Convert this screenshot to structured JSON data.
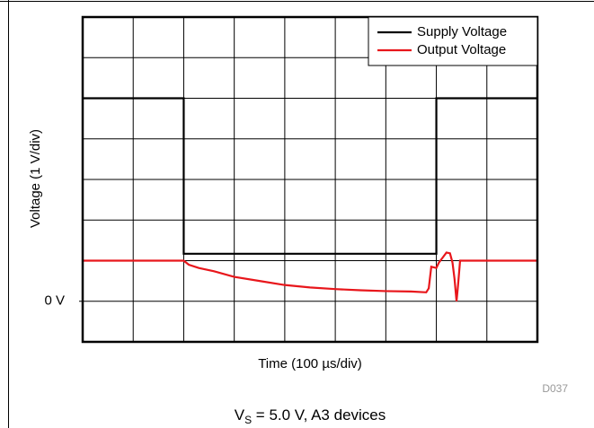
{
  "chart_data": {
    "type": "line",
    "x_label": "Time (100 µs/div)",
    "y_label": "Voltage (1 V/div)",
    "note": "D037",
    "caption": {
      "main": "V",
      "sub": "S",
      "rest": " = 5.0 V, A3 devices"
    },
    "xlim": [
      0,
      9
    ],
    "ylim": [
      -1,
      7
    ],
    "xgrid": [
      1,
      2,
      3,
      4,
      5,
      6,
      7,
      8
    ],
    "ygrid": [
      0,
      1,
      2,
      3,
      4,
      5,
      6
    ],
    "yticks": [
      {
        "value": 0,
        "label": "0 V"
      }
    ],
    "grid": true,
    "legend": "upper right",
    "series": [
      {
        "name": "Supply Voltage",
        "color": "#000000",
        "x": [
          0,
          2,
          2,
          7,
          7,
          9
        ],
        "values": [
          5,
          5,
          1.17,
          1.17,
          5,
          5
        ]
      },
      {
        "name": "Output Voltage",
        "color": "#e8161b",
        "x": [
          0,
          2,
          2.1,
          2.3,
          2.6,
          3,
          3.5,
          4,
          4.5,
          5,
          5.5,
          6,
          6.5,
          6.8,
          6.85,
          6.9,
          7,
          7.05,
          7.2,
          7.27,
          7.32,
          7.36,
          7.4,
          7.43,
          7.47,
          9
        ],
        "values": [
          1.0,
          1.0,
          0.9,
          0.82,
          0.74,
          0.6,
          0.5,
          0.4,
          0.34,
          0.3,
          0.27,
          0.25,
          0.24,
          0.22,
          0.32,
          0.85,
          0.82,
          0.95,
          1.2,
          1.18,
          0.95,
          0.55,
          0.0,
          0.4,
          1.0,
          1.0
        ]
      }
    ]
  }
}
